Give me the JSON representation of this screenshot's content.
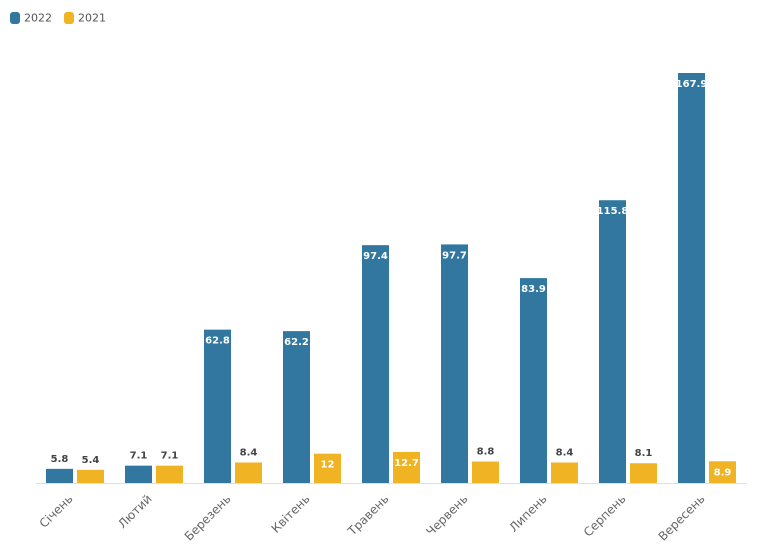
{
  "chart_data": {
    "type": "bar",
    "categories": [
      "Січень",
      "Лютий",
      "Березень",
      "Квітень",
      "Травень",
      "Червень",
      "Липень",
      "Серпень",
      "Вересень"
    ],
    "series": [
      {
        "name": "2022",
        "color": "#31779f",
        "values": [
          5.8,
          7.1,
          62.8,
          62.2,
          97.4,
          97.7,
          83.9,
          115.8,
          167.9
        ]
      },
      {
        "name": "2021",
        "color": "#f0b323",
        "values": [
          5.4,
          7.1,
          8.4,
          12,
          12.7,
          8.8,
          8.4,
          8.1,
          8.9
        ]
      }
    ],
    "legend": "top-left"
  }
}
